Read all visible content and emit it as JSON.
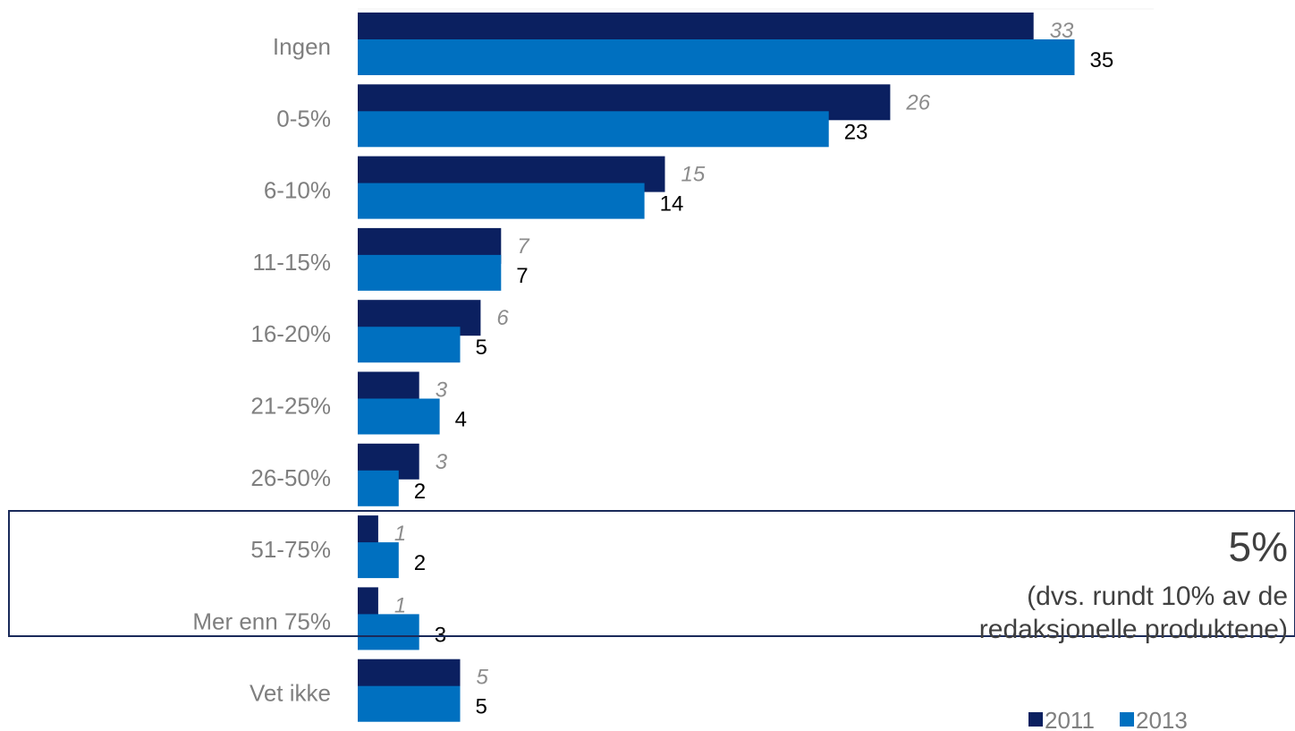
{
  "chart_data": {
    "type": "bar",
    "orientation": "horizontal",
    "categories": [
      "Ingen",
      "0-5%",
      "6-10%",
      "11-15%",
      "16-20%",
      "21-25%",
      "26-50%",
      "51-75%",
      "Mer enn 75%",
      "Vet ikke"
    ],
    "series": [
      {
        "name": "2011",
        "values": [
          33,
          26,
          15,
          7,
          6,
          3,
          3,
          1,
          1,
          5
        ],
        "color": "#0b2060"
      },
      {
        "name": "2013",
        "values": [
          35,
          23,
          14,
          7,
          5,
          4,
          2,
          2,
          3,
          5
        ],
        "color": "#0070c0"
      }
    ],
    "xlim": [
      0,
      40
    ],
    "grid": false,
    "legend": "bottom-right",
    "highlight": {
      "categories": [
        "51-75%",
        "Mer enn 75%"
      ],
      "value": "5%",
      "note_line1": "(dvs. rundt 10% av de",
      "note_line2": "redaksjonelle produktene)"
    }
  }
}
